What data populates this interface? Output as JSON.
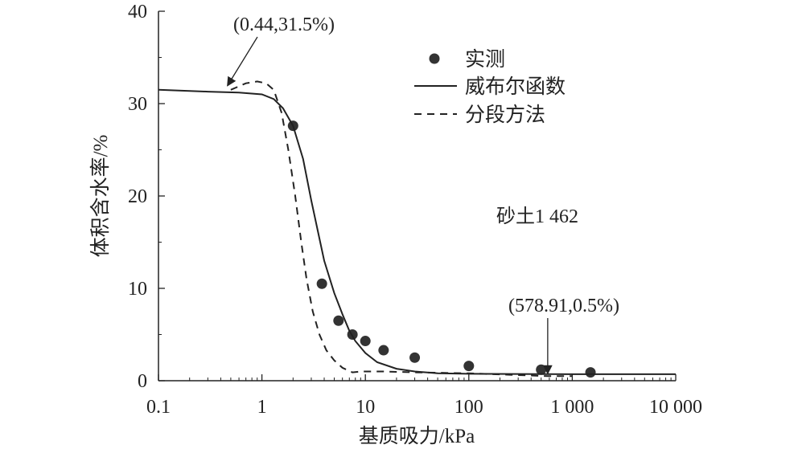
{
  "chart_data": {
    "type": "line",
    "xscale": "log",
    "xlim": [
      0.1,
      10000
    ],
    "ylim": [
      0,
      40
    ],
    "xlabel": "基质吸力/kPa",
    "ylabel": "体积含水率/%",
    "x_ticks": [
      {
        "value": 0.1,
        "label": "0.1"
      },
      {
        "value": 1,
        "label": "1"
      },
      {
        "value": 10,
        "label": "10"
      },
      {
        "value": 100,
        "label": "100"
      },
      {
        "value": 1000,
        "label": "1 000"
      },
      {
        "value": 10000,
        "label": "10 000"
      }
    ],
    "y_ticks": [
      {
        "value": 0,
        "label": "0"
      },
      {
        "value": 10,
        "label": "10"
      },
      {
        "value": 20,
        "label": "20"
      },
      {
        "value": 30,
        "label": "30"
      },
      {
        "value": 40,
        "label": "40"
      }
    ],
    "grid": false,
    "legend_position": "top-right",
    "series": [
      {
        "name": "实测",
        "style": "markers",
        "points": [
          [
            2,
            27.6
          ],
          [
            3.8,
            10.5
          ],
          [
            5.5,
            6.5
          ],
          [
            7.5,
            5.0
          ],
          [
            10,
            4.3
          ],
          [
            15,
            3.3
          ],
          [
            30,
            2.5
          ],
          [
            100,
            1.6
          ],
          [
            500,
            1.2
          ],
          [
            1500,
            0.9
          ]
        ]
      },
      {
        "name": "威布尔函数",
        "style": "solid",
        "points": [
          [
            0.1,
            31.5
          ],
          [
            0.3,
            31.3
          ],
          [
            0.6,
            31.2
          ],
          [
            1,
            31.0
          ],
          [
            1.3,
            30.5
          ],
          [
            1.6,
            29.5
          ],
          [
            2,
            27.6
          ],
          [
            2.5,
            24.0
          ],
          [
            3,
            19.5
          ],
          [
            3.5,
            16.0
          ],
          [
            4,
            13.0
          ],
          [
            5,
            9.5
          ],
          [
            6,
            7.2
          ],
          [
            7,
            5.4
          ],
          [
            8,
            4.3
          ],
          [
            10,
            3.0
          ],
          [
            13,
            2.0
          ],
          [
            20,
            1.3
          ],
          [
            30,
            1.0
          ],
          [
            50,
            0.8
          ],
          [
            100,
            0.75
          ],
          [
            1000,
            0.7
          ],
          [
            10000,
            0.7
          ]
        ]
      },
      {
        "name": "分段方法",
        "style": "dashed",
        "points": [
          [
            0.5,
            31.5
          ],
          [
            0.7,
            32.2
          ],
          [
            0.9,
            32.4
          ],
          [
            1.1,
            32.2
          ],
          [
            1.3,
            31.5
          ],
          [
            1.55,
            29.0
          ],
          [
            1.8,
            25.0
          ],
          [
            2.1,
            20.0
          ],
          [
            2.4,
            15.0
          ],
          [
            2.7,
            11.0
          ],
          [
            3.1,
            7.5
          ],
          [
            3.6,
            5.0
          ],
          [
            4.2,
            3.3
          ],
          [
            5,
            2.2
          ],
          [
            6,
            1.4
          ],
          [
            7.5,
            0.9
          ],
          [
            9,
            1.0
          ],
          [
            15,
            1.0
          ],
          [
            30,
            0.9
          ],
          [
            100,
            0.8
          ],
          [
            578.91,
            0.5
          ],
          [
            1000,
            0.5
          ]
        ]
      }
    ],
    "annotations": [
      {
        "text": "(0.44,31.5%)",
        "x": 0.44,
        "y": 31.5
      },
      {
        "text": "(578.91,0.5%)",
        "x": 578.91,
        "y": 0.5
      },
      {
        "text": "砂土1 462"
      }
    ]
  }
}
